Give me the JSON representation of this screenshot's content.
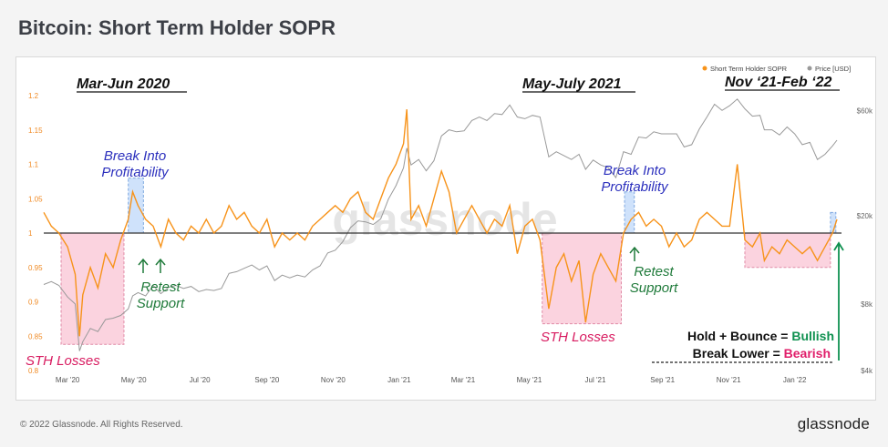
{
  "page": {
    "title": "Bitcoin: Short Term Holder SOPR",
    "copyright": "© 2022 Glassnode. All Rights Reserved.",
    "brand": "glassnode",
    "watermark": "glassnode"
  },
  "chart_data": {
    "type": "line",
    "legend": {
      "placement": "top-right",
      "items": [
        {
          "name": "Short Term Holder SOPR",
          "color": "#f7931a"
        },
        {
          "name": "Price [USD]",
          "color": "#999999"
        }
      ]
    },
    "x_ticks": [
      "Mar '20",
      "May '20",
      "Jul '20",
      "Sep '20",
      "Nov '20",
      "Jan '21",
      "Mar '21",
      "May '21",
      "Jul '21",
      "Sep '21",
      "Nov '21",
      "Jan '22"
    ],
    "left_axis": {
      "ticks": [
        "1.2",
        "1.15",
        "1.1",
        "1.05",
        "1",
        "0.95",
        "0.9",
        "0.85",
        "0.8"
      ],
      "ylim": [
        0.8,
        1.2
      ]
    },
    "right_axis": {
      "scale": "log",
      "ticks": [
        "$60k",
        "$20k",
        "$8k",
        "$4k"
      ]
    },
    "baseline": 1,
    "series": [
      {
        "name": "Short Term Holder SOPR",
        "color": "#f7931a",
        "points": [
          [
            "2020-02-08",
            1.03
          ],
          [
            "2020-02-15",
            1.01
          ],
          [
            "2020-02-22",
            1.0
          ],
          [
            "2020-03-01",
            0.98
          ],
          [
            "2020-03-08",
            0.94
          ],
          [
            "2020-03-12",
            0.85
          ],
          [
            "2020-03-15",
            0.91
          ],
          [
            "2020-03-22",
            0.95
          ],
          [
            "2020-03-29",
            0.92
          ],
          [
            "2020-04-05",
            0.97
          ],
          [
            "2020-04-12",
            0.95
          ],
          [
            "2020-04-19",
            0.99
          ],
          [
            "2020-04-26",
            1.02
          ],
          [
            "2020-04-30",
            1.06
          ],
          [
            "2020-05-05",
            1.04
          ],
          [
            "2020-05-12",
            1.02
          ],
          [
            "2020-05-19",
            1.01
          ],
          [
            "2020-05-26",
            0.98
          ],
          [
            "2020-06-02",
            1.02
          ],
          [
            "2020-06-09",
            1.0
          ],
          [
            "2020-06-16",
            0.99
          ],
          [
            "2020-06-23",
            1.01
          ],
          [
            "2020-06-30",
            1.0
          ],
          [
            "2020-07-07",
            1.02
          ],
          [
            "2020-07-14",
            1.0
          ],
          [
            "2020-07-21",
            1.01
          ],
          [
            "2020-07-28",
            1.04
          ],
          [
            "2020-08-04",
            1.02
          ],
          [
            "2020-08-11",
            1.03
          ],
          [
            "2020-08-18",
            1.01
          ],
          [
            "2020-08-25",
            1.0
          ],
          [
            "2020-09-01",
            1.02
          ],
          [
            "2020-09-08",
            0.98
          ],
          [
            "2020-09-15",
            1.0
          ],
          [
            "2020-09-22",
            0.99
          ],
          [
            "2020-09-29",
            1.0
          ],
          [
            "2020-10-06",
            0.99
          ],
          [
            "2020-10-13",
            1.01
          ],
          [
            "2020-10-20",
            1.02
          ],
          [
            "2020-10-27",
            1.03
          ],
          [
            "2020-11-03",
            1.04
          ],
          [
            "2020-11-10",
            1.03
          ],
          [
            "2020-11-17",
            1.05
          ],
          [
            "2020-11-24",
            1.06
          ],
          [
            "2020-12-01",
            1.03
          ],
          [
            "2020-12-08",
            1.02
          ],
          [
            "2020-12-15",
            1.05
          ],
          [
            "2020-12-22",
            1.08
          ],
          [
            "2020-12-29",
            1.1
          ],
          [
            "2021-01-05",
            1.13
          ],
          [
            "2021-01-08",
            1.18
          ],
          [
            "2021-01-12",
            1.02
          ],
          [
            "2021-01-19",
            1.04
          ],
          [
            "2021-01-26",
            1.01
          ],
          [
            "2021-02-02",
            1.05
          ],
          [
            "2021-02-09",
            1.09
          ],
          [
            "2021-02-16",
            1.06
          ],
          [
            "2021-02-23",
            1.0
          ],
          [
            "2021-03-02",
            1.02
          ],
          [
            "2021-03-09",
            1.04
          ],
          [
            "2021-03-16",
            1.02
          ],
          [
            "2021-03-23",
            1.0
          ],
          [
            "2021-03-30",
            1.02
          ],
          [
            "2021-04-06",
            1.01
          ],
          [
            "2021-04-13",
            1.04
          ],
          [
            "2021-04-20",
            0.97
          ],
          [
            "2021-04-27",
            1.01
          ],
          [
            "2021-05-04",
            1.02
          ],
          [
            "2021-05-11",
            0.99
          ],
          [
            "2021-05-19",
            0.89
          ],
          [
            "2021-05-26",
            0.95
          ],
          [
            "2021-06-02",
            0.97
          ],
          [
            "2021-06-09",
            0.93
          ],
          [
            "2021-06-16",
            0.96
          ],
          [
            "2021-06-22",
            0.87
          ],
          [
            "2021-06-29",
            0.94
          ],
          [
            "2021-07-06",
            0.97
          ],
          [
            "2021-07-13",
            0.95
          ],
          [
            "2021-07-20",
            0.93
          ],
          [
            "2021-07-27",
            1.0
          ],
          [
            "2021-08-03",
            1.02
          ],
          [
            "2021-08-10",
            1.03
          ],
          [
            "2021-08-17",
            1.01
          ],
          [
            "2021-08-24",
            1.02
          ],
          [
            "2021-08-31",
            1.01
          ],
          [
            "2021-09-07",
            0.98
          ],
          [
            "2021-09-14",
            1.0
          ],
          [
            "2021-09-21",
            0.98
          ],
          [
            "2021-09-28",
            0.99
          ],
          [
            "2021-10-05",
            1.02
          ],
          [
            "2021-10-12",
            1.03
          ],
          [
            "2021-10-19",
            1.02
          ],
          [
            "2021-10-26",
            1.01
          ],
          [
            "2021-11-02",
            1.01
          ],
          [
            "2021-11-09",
            1.1
          ],
          [
            "2021-11-16",
            0.99
          ],
          [
            "2021-11-23",
            0.98
          ],
          [
            "2021-11-30",
            1.0
          ],
          [
            "2021-12-04",
            0.96
          ],
          [
            "2021-12-11",
            0.98
          ],
          [
            "2021-12-18",
            0.97
          ],
          [
            "2021-12-25",
            0.99
          ],
          [
            "2022-01-01",
            0.98
          ],
          [
            "2022-01-08",
            0.97
          ],
          [
            "2022-01-15",
            0.98
          ],
          [
            "2022-01-22",
            0.96
          ],
          [
            "2022-01-29",
            0.98
          ],
          [
            "2022-02-05",
            1.0
          ],
          [
            "2022-02-09",
            1.02
          ]
        ]
      },
      {
        "name": "Price [USD]",
        "color": "#999999",
        "points": [
          [
            "2020-02-08",
            9800
          ],
          [
            "2020-02-15",
            10100
          ],
          [
            "2020-02-22",
            9700
          ],
          [
            "2020-03-01",
            8600
          ],
          [
            "2020-03-08",
            8000
          ],
          [
            "2020-03-12",
            4900
          ],
          [
            "2020-03-15",
            5400
          ],
          [
            "2020-03-22",
            6200
          ],
          [
            "2020-03-29",
            6000
          ],
          [
            "2020-04-05",
            6800
          ],
          [
            "2020-04-12",
            6900
          ],
          [
            "2020-04-19",
            7100
          ],
          [
            "2020-04-26",
            7600
          ],
          [
            "2020-04-30",
            8700
          ],
          [
            "2020-05-05",
            9000
          ],
          [
            "2020-05-12",
            8700
          ],
          [
            "2020-05-19",
            9700
          ],
          [
            "2020-05-26",
            8900
          ],
          [
            "2020-06-02",
            9500
          ],
          [
            "2020-06-09",
            9700
          ],
          [
            "2020-06-16",
            9400
          ],
          [
            "2020-06-23",
            9600
          ],
          [
            "2020-06-30",
            9100
          ],
          [
            "2020-07-07",
            9300
          ],
          [
            "2020-07-14",
            9200
          ],
          [
            "2020-07-21",
            9400
          ],
          [
            "2020-07-28",
            11000
          ],
          [
            "2020-08-04",
            11200
          ],
          [
            "2020-08-11",
            11600
          ],
          [
            "2020-08-18",
            12000
          ],
          [
            "2020-08-25",
            11400
          ],
          [
            "2020-09-01",
            11900
          ],
          [
            "2020-09-08",
            10200
          ],
          [
            "2020-09-15",
            10800
          ],
          [
            "2020-09-22",
            10500
          ],
          [
            "2020-09-29",
            10800
          ],
          [
            "2020-10-06",
            10600
          ],
          [
            "2020-10-13",
            11400
          ],
          [
            "2020-10-20",
            11900
          ],
          [
            "2020-10-27",
            13600
          ],
          [
            "2020-11-03",
            14000
          ],
          [
            "2020-11-10",
            15300
          ],
          [
            "2020-11-17",
            17700
          ],
          [
            "2020-11-24",
            19000
          ],
          [
            "2020-12-01",
            18800
          ],
          [
            "2020-12-08",
            18300
          ],
          [
            "2020-12-15",
            19400
          ],
          [
            "2020-12-22",
            23800
          ],
          [
            "2020-12-29",
            27400
          ],
          [
            "2021-01-05",
            33000
          ],
          [
            "2021-01-08",
            40500
          ],
          [
            "2021-01-12",
            34000
          ],
          [
            "2021-01-19",
            36000
          ],
          [
            "2021-01-26",
            32000
          ],
          [
            "2021-02-02",
            35500
          ],
          [
            "2021-02-09",
            46000
          ],
          [
            "2021-02-16",
            49000
          ],
          [
            "2021-02-23",
            48000
          ],
          [
            "2021-03-02",
            48500
          ],
          [
            "2021-03-09",
            54000
          ],
          [
            "2021-03-16",
            56000
          ],
          [
            "2021-03-23",
            54000
          ],
          [
            "2021-03-30",
            58000
          ],
          [
            "2021-04-06",
            57500
          ],
          [
            "2021-04-13",
            63500
          ],
          [
            "2021-04-20",
            56000
          ],
          [
            "2021-04-27",
            55000
          ],
          [
            "2021-05-04",
            57000
          ],
          [
            "2021-05-11",
            56000
          ],
          [
            "2021-05-19",
            37000
          ],
          [
            "2021-05-26",
            39000
          ],
          [
            "2021-06-02",
            37500
          ],
          [
            "2021-06-09",
            36000
          ],
          [
            "2021-06-16",
            38000
          ],
          [
            "2021-06-22",
            32500
          ],
          [
            "2021-06-29",
            35800
          ],
          [
            "2021-07-06",
            34000
          ],
          [
            "2021-07-13",
            33000
          ],
          [
            "2021-07-20",
            29800
          ],
          [
            "2021-07-27",
            39000
          ],
          [
            "2021-08-03",
            38000
          ],
          [
            "2021-08-10",
            45500
          ],
          [
            "2021-08-17",
            45000
          ],
          [
            "2021-08-24",
            48000
          ],
          [
            "2021-08-31",
            47000
          ],
          [
            "2021-09-07",
            47000
          ],
          [
            "2021-09-14",
            47000
          ],
          [
            "2021-09-21",
            41000
          ],
          [
            "2021-09-28",
            42000
          ],
          [
            "2021-10-05",
            49500
          ],
          [
            "2021-10-12",
            56000
          ],
          [
            "2021-10-19",
            64000
          ],
          [
            "2021-10-26",
            60000
          ],
          [
            "2021-11-02",
            63000
          ],
          [
            "2021-11-09",
            67500
          ],
          [
            "2021-11-16",
            61000
          ],
          [
            "2021-11-23",
            56500
          ],
          [
            "2021-11-30",
            57000
          ],
          [
            "2021-12-04",
            49000
          ],
          [
            "2021-12-11",
            49000
          ],
          [
            "2021-12-18",
            46500
          ],
          [
            "2021-12-25",
            50500
          ],
          [
            "2022-01-01",
            47000
          ],
          [
            "2022-01-08",
            42000
          ],
          [
            "2022-01-15",
            43000
          ],
          [
            "2022-01-22",
            36000
          ],
          [
            "2022-01-29",
            38000
          ],
          [
            "2022-02-05",
            41500
          ],
          [
            "2022-02-09",
            44000
          ]
        ]
      }
    ],
    "regions": [
      {
        "kind": "loss",
        "from": "2020-02-24",
        "to": "2020-04-22",
        "ymin": 0.838,
        "ymax": 1.0
      },
      {
        "kind": "profit",
        "from": "2020-04-26",
        "to": "2020-05-10",
        "ymin": 1.0,
        "ymax": 1.08
      },
      {
        "kind": "loss",
        "from": "2021-05-13",
        "to": "2021-07-25",
        "ymin": 0.868,
        "ymax": 1.0
      },
      {
        "kind": "profit",
        "from": "2021-07-28",
        "to": "2021-08-06",
        "ymin": 1.0,
        "ymax": 1.06
      },
      {
        "kind": "loss",
        "from": "2021-11-16",
        "to": "2022-02-03",
        "ymin": 0.95,
        "ymax": 1.0
      },
      {
        "kind": "profit",
        "from": "2022-02-03",
        "to": "2022-02-08",
        "ymin": 1.0,
        "ymax": 1.03
      }
    ],
    "annotations": {
      "period_mar_jun_2020": "Mar-Jun 2020",
      "period_may_jul_2021": "May-July 2021",
      "period_nov21_feb22": "Nov ‘21-Feb ‘22",
      "break_into_1_line1": "Break Into",
      "break_into_1_line2": "Profitability",
      "break_into_2_line1": "Break Into",
      "break_into_2_line2": "Profitability",
      "retest_line1": "Retest",
      "retest_line2": "Support",
      "retest2_line1": "Retest",
      "retest2_line2": "Support",
      "sth_losses_1": "STH Losses",
      "sth_losses_2": "STH Losses",
      "hold_bounce_prefix": "Hold + Bounce = ",
      "hold_bounce_word": "Bullish",
      "break_lower_prefix": "Break Lower = ",
      "break_lower_word": "Bearish"
    },
    "colors": {
      "sopr": "#f7931a",
      "price": "#999999",
      "baseline": "#333333",
      "loss_fill": "#fbd3df",
      "loss_border": "#e08aa6",
      "profit_fill": "#cfe2fb",
      "profit_border": "#7fa8e0",
      "break_text": "#2b2fbd",
      "retest_text": "#1f7a3a",
      "loss_text": "#d81b60",
      "bullish": "#0f9150",
      "bearish": "#e01e6a"
    }
  }
}
